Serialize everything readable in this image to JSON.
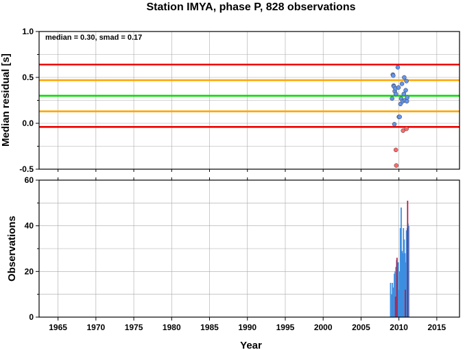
{
  "title": "Station IMYA, phase P, 828 observations",
  "chart_data": [
    {
      "type": "scatter",
      "ylabel": "Median residual [s]",
      "xlim": [
        1962.5,
        2018
      ],
      "ylim": [
        -0.5,
        1.0
      ],
      "yticks": [
        1.0,
        0.5,
        0.0,
        -0.5
      ],
      "ytick_labels": [
        "1.0",
        "0.5",
        "0.0",
        "-0.5"
      ],
      "annotation": "median = 0.30, smad = 0.17",
      "grid": true,
      "hlines": [
        {
          "y": 0.3,
          "color": "#00dd00"
        },
        {
          "y": 0.47,
          "color": "#ffa500"
        },
        {
          "y": 0.13,
          "color": "#ffa500"
        },
        {
          "y": 0.64,
          "color": "#ee0000"
        },
        {
          "y": -0.04,
          "color": "#ee0000"
        }
      ],
      "points": [
        {
          "x": 2009.1,
          "y": 0.27
        },
        {
          "x": 2009.2,
          "y": 0.53
        },
        {
          "x": 2009.25,
          "y": 0.52
        },
        {
          "x": 2009.3,
          "y": 0.41
        },
        {
          "x": 2009.35,
          "y": 0.4
        },
        {
          "x": 2009.45,
          "y": 0.35
        },
        {
          "x": 2009.55,
          "y": 0.38
        },
        {
          "x": 2009.6,
          "y": 0.32
        },
        {
          "x": 2009.85,
          "y": 0.61
        },
        {
          "x": 2009.95,
          "y": 0.39
        },
        {
          "x": 2010.0,
          "y": 0.07
        },
        {
          "x": 2010.1,
          "y": 0.07
        },
        {
          "x": 2010.2,
          "y": 0.21
        },
        {
          "x": 2010.3,
          "y": 0.27
        },
        {
          "x": 2010.4,
          "y": 0.43
        },
        {
          "x": 2010.5,
          "y": 0.24
        },
        {
          "x": 2010.65,
          "y": 0.32
        },
        {
          "x": 2010.7,
          "y": 0.5
        },
        {
          "x": 2010.8,
          "y": 0.25
        },
        {
          "x": 2010.9,
          "y": 0.36
        },
        {
          "x": 2011.0,
          "y": 0.46
        },
        {
          "x": 2011.05,
          "y": 0.24
        },
        {
          "x": 2011.1,
          "y": 0.28
        },
        {
          "x": 2009.4,
          "y": -0.01
        },
        {
          "x": 2009.6,
          "y": -0.29
        },
        {
          "x": 2009.65,
          "y": -0.46
        },
        {
          "x": 2010.55,
          "y": -0.08
        },
        {
          "x": 2011.0,
          "y": -0.06
        }
      ],
      "point_colors": {
        "inside": "#6495ed",
        "outside": "#ff6a6a"
      }
    },
    {
      "type": "bar",
      "xlabel": "Year",
      "ylabel": "Observations",
      "xlim": [
        1962.5,
        2018
      ],
      "ylim": [
        0,
        60
      ],
      "xticks": [
        1965,
        1970,
        1975,
        1980,
        1985,
        1990,
        1995,
        2000,
        2005,
        2010,
        2015
      ],
      "xtick_labels": [
        "1965",
        "1970",
        "1975",
        "1980",
        "1985",
        "1990",
        "1995",
        "2000",
        "2005",
        "2010",
        "2015"
      ],
      "yticks": [
        60,
        40,
        20,
        0
      ],
      "ytick_labels": [
        "60",
        "40",
        "20",
        "0"
      ],
      "grid": true,
      "bar_colors": {
        "inside": "#3d8ee0",
        "outside": "#b01e4a"
      },
      "bars": [
        {
          "x": 2008.9,
          "y": 15
        },
        {
          "x": 2009.05,
          "y": 10
        },
        {
          "x": 2009.15,
          "y": 15
        },
        {
          "x": 2009.25,
          "y": 13
        },
        {
          "x": 2009.4,
          "y": 19
        },
        {
          "x": 2009.5,
          "y": 20
        },
        {
          "x": 2009.6,
          "y": 22
        },
        {
          "x": 2009.7,
          "y": 25
        },
        {
          "x": 2009.8,
          "y": 18
        },
        {
          "x": 2009.9,
          "y": 24
        },
        {
          "x": 2010.0,
          "y": 12
        },
        {
          "x": 2010.1,
          "y": 20
        },
        {
          "x": 2010.2,
          "y": 39
        },
        {
          "x": 2010.3,
          "y": 48
        },
        {
          "x": 2010.4,
          "y": 29
        },
        {
          "x": 2010.5,
          "y": 28
        },
        {
          "x": 2010.6,
          "y": 39
        },
        {
          "x": 2010.7,
          "y": 34
        },
        {
          "x": 2010.8,
          "y": 28
        },
        {
          "x": 2010.9,
          "y": 24
        },
        {
          "x": 2011.0,
          "y": 38
        },
        {
          "x": 2011.1,
          "y": 39
        },
        {
          "x": 2011.2,
          "y": 41
        },
        {
          "x": 2011.3,
          "y": 40
        }
      ],
      "outlier_bars": [
        {
          "x": 2009.55,
          "y": 9
        },
        {
          "x": 2009.75,
          "y": 26
        },
        {
          "x": 2011.15,
          "y": 51
        },
        {
          "x": 2010.85,
          "y": 12
        }
      ]
    }
  ]
}
